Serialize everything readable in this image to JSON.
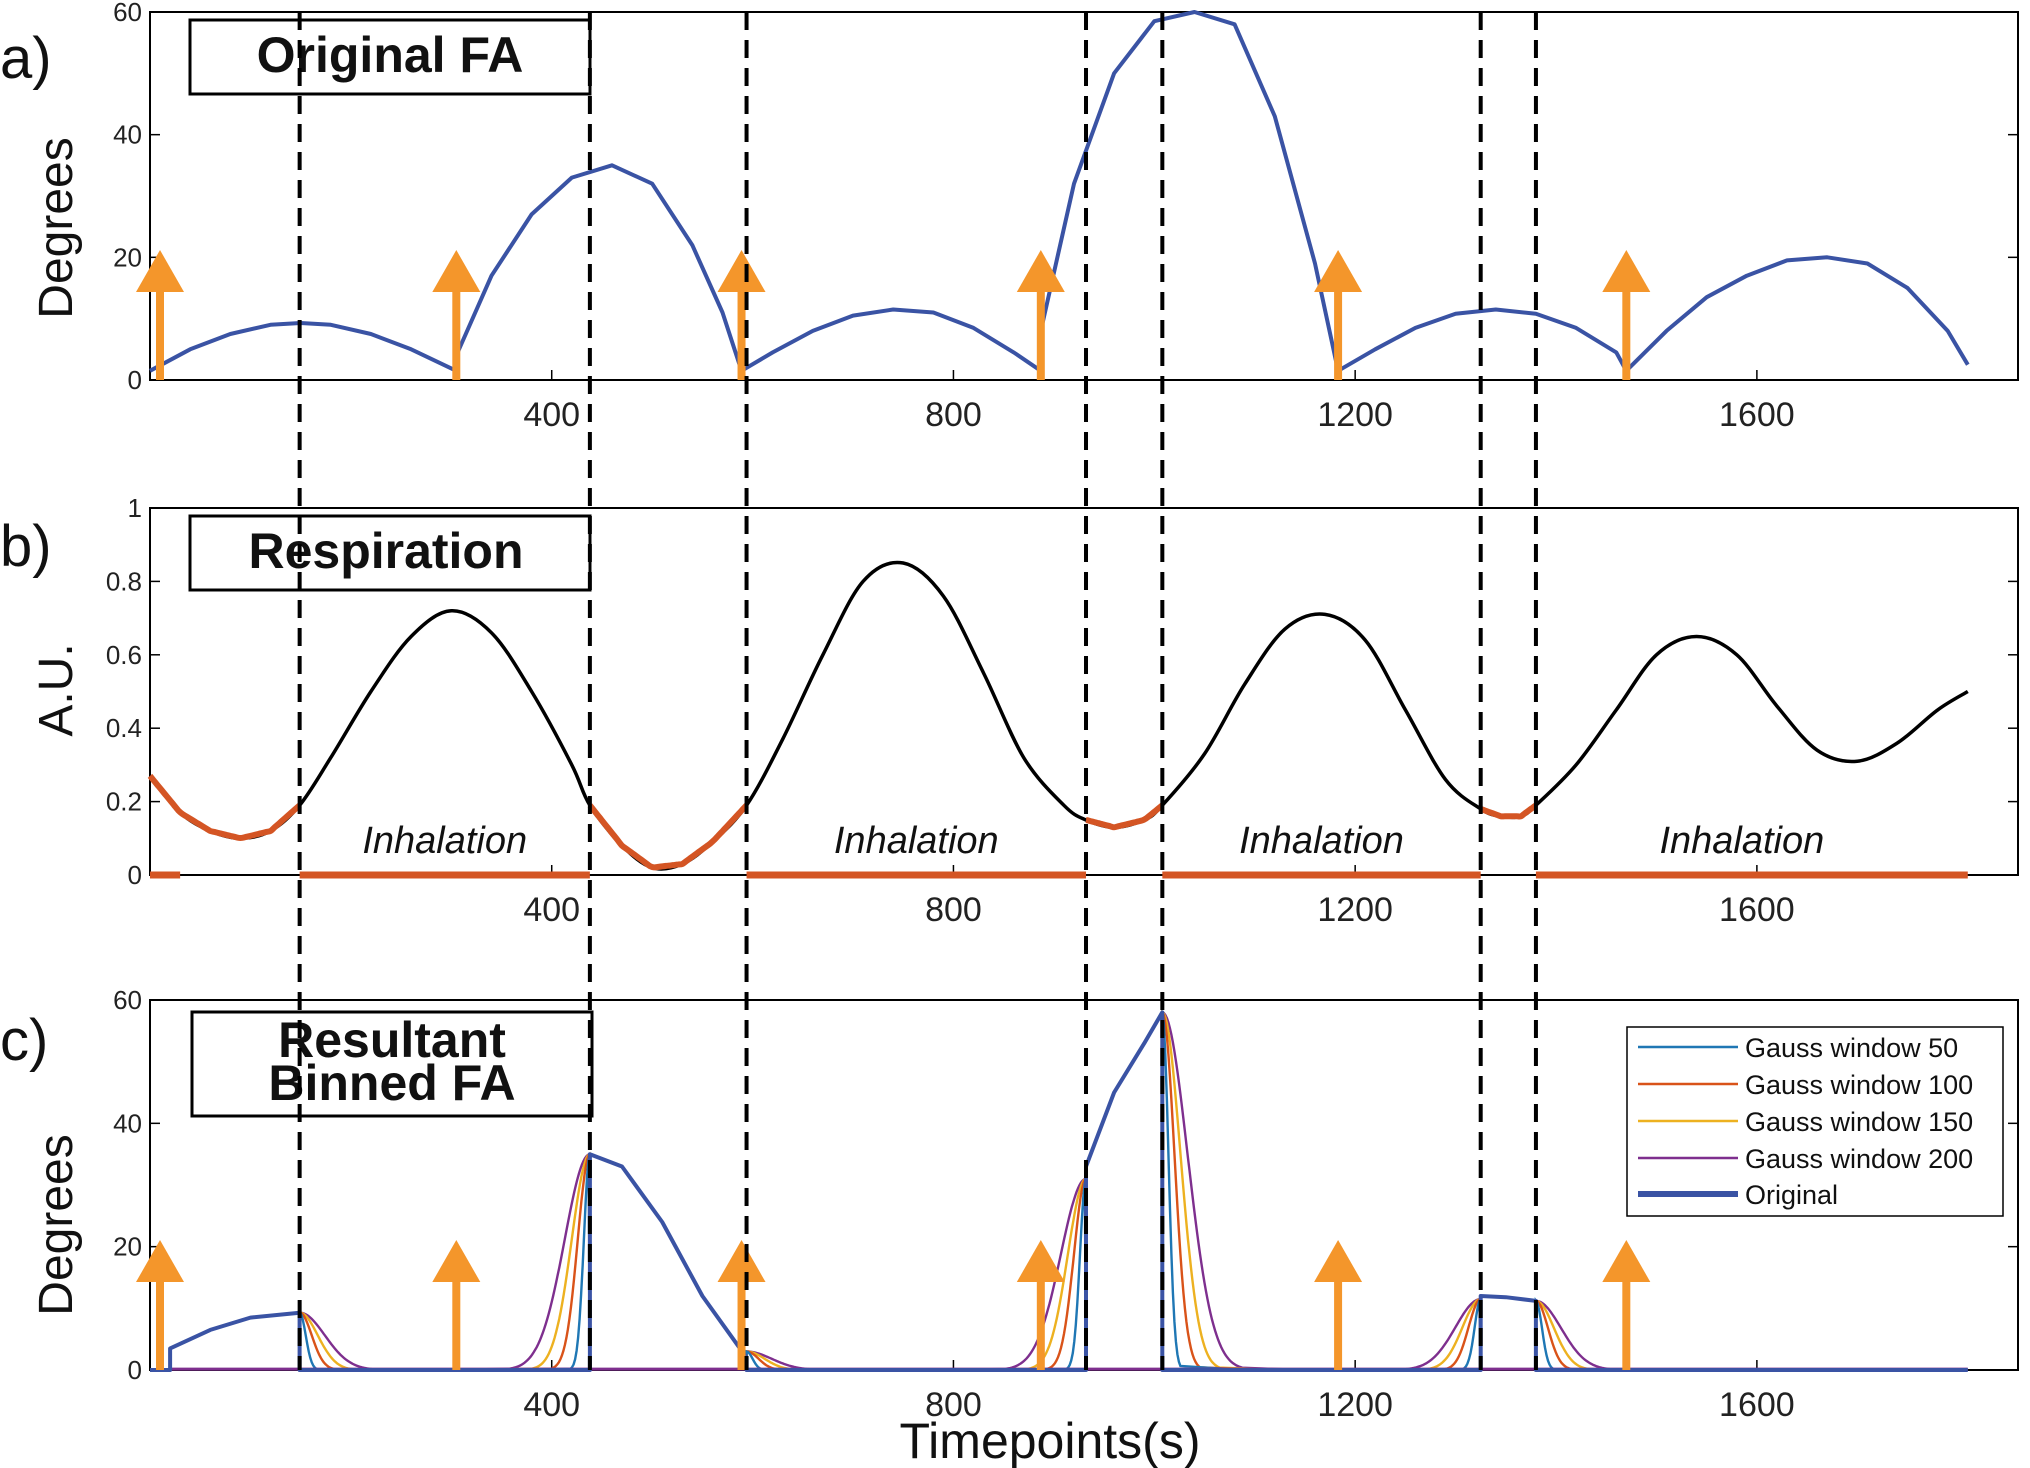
{
  "figure": {
    "xlabel": "Timepoints(s)",
    "colors": {
      "original": "#3a53a4",
      "respiration": "#000000",
      "exhalation": "#d45524",
      "arrow": "#f4962b",
      "gauss50": "#1f77b4",
      "gauss100": "#d95319",
      "gauss150": "#edb120",
      "gauss200": "#7e2f8e",
      "divider": "#000000"
    },
    "dividers": [
      149,
      438,
      594,
      932,
      1008,
      1325,
      1380
    ],
    "triggers": [
      0,
      305,
      589,
      887,
      1183,
      1470
    ]
  },
  "chart_data": [
    {
      "type": "line",
      "panel_label": "a)",
      "title": "Original FA",
      "xlabel": "",
      "ylabel": "Degrees",
      "xlim": [
        0,
        1860
      ],
      "ylim": [
        0,
        60
      ],
      "xticks": [
        400,
        800,
        1200,
        1600
      ],
      "yticks": [
        0,
        20,
        40,
        60
      ],
      "series": [
        {
          "key": "original",
          "x": [
            0,
            40,
            80,
            120,
            150,
            180,
            220,
            260,
            305,
            305,
            340,
            380,
            420,
            460,
            500,
            540,
            570,
            589,
            589,
            620,
            660,
            700,
            740,
            780,
            820,
            860,
            887,
            887,
            920,
            960,
            1000,
            1040,
            1080,
            1120,
            1160,
            1183,
            1183,
            1220,
            1260,
            1300,
            1340,
            1380,
            1420,
            1460,
            1470,
            1470,
            1510,
            1550,
            1590,
            1630,
            1670,
            1710,
            1750,
            1790,
            1810
          ],
          "y": [
            1.5,
            5,
            7.5,
            9,
            9.3,
            9,
            7.5,
            5,
            1.5,
            4,
            17,
            27,
            33,
            35,
            32,
            22,
            11,
            1.5,
            1.5,
            4.5,
            8,
            10.5,
            11.5,
            11,
            8.5,
            4.5,
            1.5,
            8,
            32,
            50,
            58.5,
            60,
            58,
            43,
            19,
            1.5,
            1.5,
            5,
            8.5,
            10.8,
            11.5,
            10.8,
            8.5,
            4.5,
            1.5,
            1.5,
            8,
            13.5,
            17,
            19.5,
            20,
            19,
            15,
            8,
            2.5
          ]
        }
      ],
      "triggers": [
        0,
        305,
        589,
        887,
        1183,
        1470
      ]
    },
    {
      "type": "line",
      "panel_label": "b)",
      "title": "Respiration",
      "xlabel": "",
      "ylabel": "A.U.",
      "xlim": [
        0,
        1860
      ],
      "ylim": [
        0,
        1
      ],
      "xticks": [
        400,
        800,
        1200,
        1600
      ],
      "yticks": [
        0,
        0.2,
        0.4,
        0.6,
        0.8,
        1
      ],
      "ytick_labels": [
        "0",
        "0.2",
        "0.4",
        "0.6",
        "0.8",
        "1"
      ],
      "series": [
        {
          "key": "respiration",
          "x": [
            0,
            30,
            60,
            90,
            120,
            149,
            180,
            220,
            260,
            300,
            340,
            380,
            420,
            438,
            470,
            500,
            530,
            560,
            594,
            630,
            670,
            710,
            750,
            790,
            830,
            870,
            910,
            932,
            960,
            990,
            1008,
            1050,
            1090,
            1130,
            1170,
            1210,
            1250,
            1290,
            1325,
            1345,
            1365,
            1380,
            1420,
            1460,
            1500,
            1540,
            1580,
            1620,
            1660,
            1700,
            1740,
            1780,
            1810
          ],
          "y": [
            0.27,
            0.17,
            0.12,
            0.1,
            0.12,
            0.19,
            0.32,
            0.5,
            0.65,
            0.72,
            0.66,
            0.5,
            0.3,
            0.19,
            0.08,
            0.02,
            0.03,
            0.09,
            0.19,
            0.37,
            0.6,
            0.8,
            0.85,
            0.76,
            0.55,
            0.32,
            0.19,
            0.15,
            0.13,
            0.15,
            0.19,
            0.33,
            0.52,
            0.67,
            0.71,
            0.64,
            0.45,
            0.26,
            0.18,
            0.16,
            0.16,
            0.19,
            0.3,
            0.45,
            0.6,
            0.65,
            0.6,
            0.46,
            0.34,
            0.31,
            0.36,
            0.45,
            0.5
          ]
        }
      ],
      "exhalation_intervals": [
        [
          0,
          149
        ],
        [
          438,
          594
        ],
        [
          932,
          1008
        ],
        [
          1325,
          1380
        ]
      ],
      "inhalation_intervals": [
        [
          149,
          438
        ],
        [
          594,
          932
        ],
        [
          1008,
          1325
        ],
        [
          1380,
          1810
        ]
      ],
      "phase_label": "Inhalation"
    },
    {
      "type": "line",
      "panel_label": "c)",
      "title": "Resultant Binned FA",
      "title_lines": [
        "Resultant",
        "Binned FA"
      ],
      "xlabel": "Timepoints(s)",
      "ylabel": "Degrees",
      "xlim": [
        0,
        1860
      ],
      "ylim": [
        0,
        60
      ],
      "xticks": [
        400,
        800,
        1200,
        1600
      ],
      "yticks": [
        0,
        20,
        40,
        60
      ],
      "legend_position": "top-right",
      "series": [
        {
          "key": "gauss50",
          "name": "Gauss window 50",
          "x": [],
          "y": []
        },
        {
          "key": "gauss100",
          "name": "Gauss window 100",
          "x": [],
          "y": []
        },
        {
          "key": "gauss150",
          "name": "Gauss window 150",
          "x": [],
          "y": []
        },
        {
          "key": "gauss200",
          "name": "Gauss window 200",
          "x": [],
          "y": []
        },
        {
          "key": "original",
          "name": "Original",
          "x": [
            0,
            20,
            20,
            60,
            100,
            149,
            149,
            438,
            438,
            470,
            510,
            550,
            594,
            594,
            932,
            932,
            960,
            990,
            1008,
            1008,
            1325,
            1325,
            1350,
            1380,
            1380,
            1810
          ],
          "y": [
            0,
            0,
            3.5,
            6.5,
            8.5,
            9.3,
            0,
            0,
            35,
            33,
            24,
            12,
            2,
            0,
            0,
            33,
            45,
            53,
            58,
            0,
            0,
            12,
            11.8,
            11.2,
            0,
            0
          ]
        }
      ],
      "gauss_params": [
        {
          "key": "gauss50",
          "sigma": 6
        },
        {
          "key": "gauss100",
          "sigma": 12
        },
        {
          "key": "gauss150",
          "sigma": 18
        },
        {
          "key": "gauss200",
          "sigma": 25
        }
      ],
      "bumps": [
        {
          "x": 149,
          "peak": 9.3,
          "side": "right"
        },
        {
          "x": 438,
          "peak": 35,
          "side": "left"
        },
        {
          "x": 594,
          "peak": 3,
          "side": "right"
        },
        {
          "x": 932,
          "peak": 31,
          "side": "left"
        },
        {
          "x": 1008,
          "peak": 58,
          "side": "right"
        },
        {
          "x": 1325,
          "peak": 11.5,
          "side": "left"
        },
        {
          "x": 1380,
          "peak": 11.2,
          "side": "right"
        }
      ],
      "triggers": [
        0,
        305,
        589,
        887,
        1183,
        1470
      ]
    }
  ]
}
